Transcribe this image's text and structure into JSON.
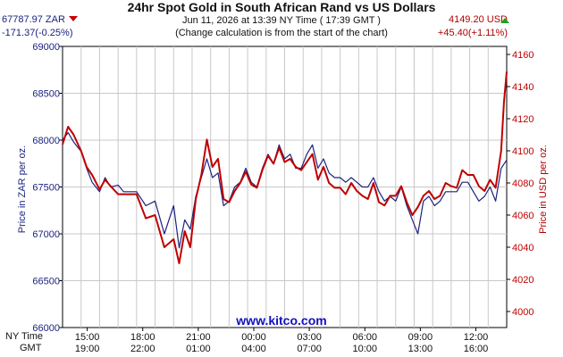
{
  "header": {
    "title": "24hr Spot Gold in South African Rand vs US Dollars",
    "datetime": "Jun 11, 2026 at 13:39 NY Time ( 17:39 GMT )",
    "note": "(Change calculation is from the start of the chart)",
    "zar_price": "67787.97 ZAR",
    "zar_change": "-171.37(-0.25%)",
    "usd_price": "4149.20 USD",
    "usd_change": "+45.40(+1.11%)",
    "zar_direction": "down",
    "usd_direction": "up"
  },
  "watermark": "www.kitco.com",
  "time_row_labels": {
    "ny": "NY Time",
    "gmt": "GMT"
  },
  "colors": {
    "zar_series": "#1a237e",
    "usd_series": "#c00000",
    "grid": "#c8c8c8",
    "down_arrow": "#cc0000",
    "up_arrow": "#20a020"
  },
  "chart_data": {
    "type": "line",
    "title": "24hr Spot Gold in South African Rand vs US Dollars",
    "ylabel_left": "Price in ZAR per oz.",
    "ylabel_right": "Price in USD per oz.",
    "ylim_left": [
      66000,
      69000
    ],
    "ylim_right": [
      3990,
      4165
    ],
    "yticks_left": [
      "66000",
      "66500",
      "67000",
      "67500",
      "68000",
      "68500",
      "69000"
    ],
    "yticks_right": [
      "4000",
      "4020",
      "4040",
      "4060",
      "4080",
      "4100",
      "4120",
      "4140",
      "4160"
    ],
    "xticks_ny": [
      "15:00",
      "18:00",
      "21:00",
      "00:00",
      "03:00",
      "06:00",
      "09:00",
      "12:00"
    ],
    "xticks_gmt": [
      "19:00",
      "22:00",
      "01:00",
      "04:00",
      "07:00",
      "10:00",
      "13:00",
      "16:00"
    ],
    "x_unit": "hours after 13:39 NY Time (start of chart)",
    "xlim": [
      0,
      24
    ],
    "grid": true,
    "series": [
      {
        "name": "ZAR",
        "axis": "left",
        "x": [
          0,
          0.3,
          0.6,
          1.0,
          1.3,
          1.6,
          2.0,
          2.3,
          2.6,
          3.0,
          3.3,
          3.6,
          4.0,
          4.5,
          5.0,
          5.5,
          6.0,
          6.3,
          6.6,
          6.9,
          7.2,
          7.5,
          7.8,
          8.1,
          8.4,
          8.7,
          9.0,
          9.3,
          9.6,
          9.9,
          10.2,
          10.5,
          10.8,
          11.1,
          11.4,
          11.7,
          12.0,
          12.3,
          12.6,
          12.9,
          13.2,
          13.5,
          13.8,
          14.1,
          14.4,
          14.7,
          15.0,
          15.3,
          15.6,
          15.9,
          16.2,
          16.5,
          16.8,
          17.1,
          17.4,
          17.7,
          18.0,
          18.3,
          18.6,
          18.9,
          19.2,
          19.5,
          19.8,
          20.1,
          20.4,
          20.7,
          21.0,
          21.3,
          21.6,
          21.9,
          22.2,
          22.5,
          22.8,
          23.1,
          23.4,
          23.7,
          24.0
        ],
        "y": [
          68000,
          68080,
          67980,
          67880,
          67700,
          67550,
          67450,
          67600,
          67500,
          67520,
          67450,
          67450,
          67450,
          67300,
          67350,
          67000,
          67300,
          66850,
          67150,
          67050,
          67400,
          67600,
          67800,
          67600,
          67650,
          67300,
          67350,
          67500,
          67550,
          67700,
          67550,
          67500,
          67700,
          67850,
          67750,
          67950,
          67800,
          67850,
          67700,
          67700,
          67850,
          67950,
          67700,
          67800,
          67650,
          67600,
          67600,
          67550,
          67600,
          67550,
          67500,
          67500,
          67600,
          67450,
          67350,
          67400,
          67350,
          67500,
          67300,
          67150,
          67000,
          67350,
          67400,
          67300,
          67350,
          67450,
          67450,
          67450,
          67550,
          67550,
          67450,
          67350,
          67400,
          67500,
          67350,
          67700,
          67788
        ]
      },
      {
        "name": "USD",
        "axis": "right",
        "x": [
          0,
          0.3,
          0.6,
          1.0,
          1.3,
          1.6,
          2.0,
          2.3,
          2.6,
          3.0,
          3.3,
          3.6,
          4.0,
          4.5,
          5.0,
          5.5,
          6.0,
          6.3,
          6.6,
          6.9,
          7.2,
          7.5,
          7.8,
          8.1,
          8.4,
          8.7,
          9.0,
          9.3,
          9.6,
          9.9,
          10.2,
          10.5,
          10.8,
          11.1,
          11.4,
          11.7,
          12.0,
          12.3,
          12.6,
          12.9,
          13.2,
          13.5,
          13.8,
          14.1,
          14.4,
          14.7,
          15.0,
          15.3,
          15.6,
          15.9,
          16.2,
          16.5,
          16.8,
          17.1,
          17.4,
          17.7,
          18.0,
          18.3,
          18.6,
          18.9,
          19.2,
          19.5,
          19.8,
          20.1,
          20.4,
          20.7,
          21.0,
          21.3,
          21.6,
          21.9,
          22.2,
          22.5,
          22.8,
          23.1,
          23.4,
          23.7,
          23.85,
          24.0
        ],
        "y": [
          4104,
          4115,
          4110,
          4100,
          4090,
          4085,
          4076,
          4082,
          4078,
          4073,
          4073,
          4073,
          4073,
          4058,
          4060,
          4040,
          4045,
          4030,
          4050,
          4040,
          4070,
          4085,
          4107,
          4090,
          4095,
          4070,
          4068,
          4075,
          4080,
          4087,
          4079,
          4077,
          4088,
          4097,
          4092,
          4102,
          4093,
          4095,
          4090,
          4088,
          4093,
          4098,
          4082,
          4090,
          4080,
          4077,
          4077,
          4073,
          4080,
          4075,
          4072,
          4070,
          4080,
          4068,
          4066,
          4072,
          4072,
          4078,
          4068,
          4060,
          4065,
          4072,
          4075,
          4070,
          4072,
          4080,
          4078,
          4077,
          4088,
          4085,
          4085,
          4078,
          4075,
          4082,
          4077,
          4100,
          4130,
          4149.2
        ]
      }
    ]
  }
}
